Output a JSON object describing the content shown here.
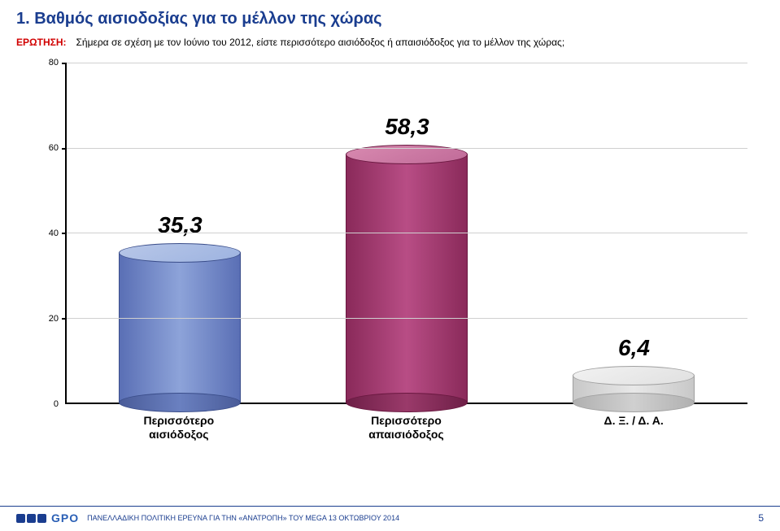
{
  "header": {
    "title": "1.  Βαθμός αισιοδοξίας για το μέλλον της χώρας",
    "question_label": "ΕΡΩΤΗΣΗ:",
    "question_text": "Σήμερα σε σχέση με τον Ιούνιο του 2012, είστε περισσότερο αισιόδοξος ή απαισιόδοξος για το μέλλον της χώρας;"
  },
  "chart": {
    "type": "bar",
    "ylim": [
      0,
      80
    ],
    "ytick_step": 20,
    "yticks": [
      0,
      20,
      40,
      60,
      80
    ],
    "grid_color": "#d0d0d0",
    "axis_color": "#000000",
    "background_color": "#ffffff",
    "value_fontsize": 28,
    "value_fontstyle": "italic",
    "xlabel_fontsize": 14,
    "cylinder_width": 150,
    "ellipse_height": 24,
    "bars": [
      {
        "label": "Περισσότερο αισιόδοξος",
        "value": 35.3,
        "value_text": "35,3",
        "body_gradient": [
          "#5a6fb5",
          "#8da3d9",
          "#5a6fb5"
        ],
        "top_gradient": [
          "#b8c7e8",
          "#9db3e0"
        ],
        "bot_gradient": [
          "#4a5c99",
          "#6a80c0"
        ],
        "border": "#3a4d8a"
      },
      {
        "label": "Περισσότερο απαισιόδοξος",
        "value": 58.3,
        "value_text": "58,3",
        "body_gradient": [
          "#8a2a5a",
          "#b84d85",
          "#8a2a5a"
        ],
        "top_gradient": [
          "#d88ab0",
          "#c06a98"
        ],
        "bot_gradient": [
          "#6e1f47",
          "#9a3a6a"
        ],
        "border": "#6a1840"
      },
      {
        "label": "Δ. Ξ. / Δ. Α.",
        "value": 6.4,
        "value_text": "6,4",
        "body_gradient": [
          "#c8c8c8",
          "#e8e8e8",
          "#c8c8c8"
        ],
        "top_gradient": [
          "#f2f2f2",
          "#e0e0e0"
        ],
        "bot_gradient": [
          "#b0b0b0",
          "#d0d0d0"
        ],
        "border": "#a0a0a0"
      }
    ]
  },
  "footer": {
    "logo_text": "GPO",
    "text": "ΠΑΝΕΛΛΑΔΙΚΗ ΠΟΛΙΤΙΚΗ ΕΡΕΥΝΑ ΓΙΑ ΤΗΝ «ΑΝΑΤΡΟΠΗ» ΤΟΥ MEGA  13  ΟΚΤΩΒΡΙΟΥ 2014",
    "page": "5"
  },
  "colors": {
    "title": "#1a3d8f",
    "question_label": "#d10000",
    "footer": "#1a3d8f"
  }
}
